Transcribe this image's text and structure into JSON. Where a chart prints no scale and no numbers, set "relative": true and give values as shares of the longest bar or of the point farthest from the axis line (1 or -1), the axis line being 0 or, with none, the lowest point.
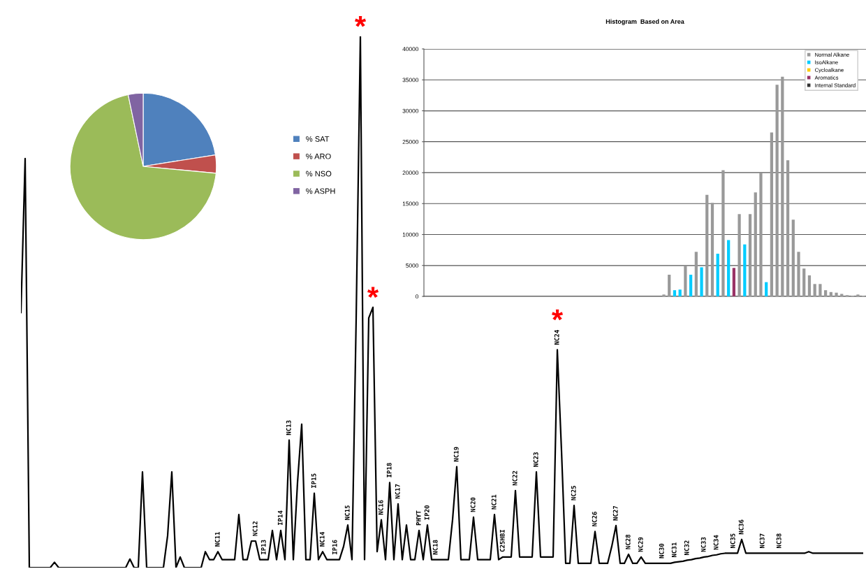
{
  "chart_data": [
    {
      "type": "pie",
      "categories": [
        "% SAT",
        "% ARO",
        "% NSO",
        "% ASPH"
      ],
      "values": [
        22.5,
        4,
        70.2,
        3.3
      ],
      "colors": [
        "#4f81bd",
        "#c0504d",
        "#9bbb59",
        "#8064a2"
      ],
      "legend": "right"
    },
    {
      "type": "bar",
      "title": "Histogram  Based on Area",
      "categories": [
        null,
        null,
        null,
        null,
        null,
        null,
        null,
        null,
        null,
        null,
        null,
        null,
        null,
        null,
        null,
        null,
        null,
        null,
        null,
        null,
        null,
        null,
        null,
        null,
        null,
        null,
        null,
        null,
        null,
        null,
        null,
        null,
        null,
        null,
        null,
        null,
        null,
        null,
        null,
        null,
        null,
        null,
        null,
        null,
        null,
        null,
        null,
        null,
        null,
        null,
        null,
        null,
        null,
        null,
        null,
        null,
        null,
        null,
        null,
        null,
        null,
        null,
        null,
        null,
        null,
        null,
        null,
        null,
        null,
        null,
        null,
        null,
        null,
        null,
        null,
        null,
        null,
        null,
        null,
        null,
        null,
        null
      ],
      "series": [
        {
          "name": "Normal Alkane",
          "color": "#999999",
          "values": [
            0,
            0,
            0,
            0,
            0,
            0,
            0,
            0,
            0,
            0,
            0,
            0,
            0,
            0,
            0,
            0,
            0,
            0,
            0,
            0,
            0,
            0,
            0,
            0,
            0,
            0,
            0,
            0,
            0,
            0,
            0,
            0,
            0,
            0,
            0,
            0,
            0,
            0,
            0,
            0,
            0,
            0,
            0,
            0,
            300,
            3500,
            null,
            null,
            5000,
            null,
            7200,
            null,
            16400,
            15100,
            null,
            20400,
            null,
            null,
            13300,
            null,
            13300,
            16800,
            20000,
            null,
            26500,
            34200,
            35500,
            22000,
            12400,
            7200,
            4500,
            3400,
            2000,
            2000,
            1000,
            700,
            600,
            400,
            200,
            100,
            300,
            100
          ]
        },
        {
          "name": "IsoAlkane",
          "color": "#00ccff",
          "values": [
            null,
            null,
            null,
            null,
            null,
            null,
            null,
            null,
            null,
            null,
            null,
            null,
            null,
            null,
            null,
            null,
            null,
            null,
            null,
            null,
            null,
            null,
            null,
            null,
            null,
            null,
            null,
            null,
            null,
            null,
            null,
            null,
            null,
            null,
            null,
            null,
            null,
            null,
            null,
            null,
            null,
            null,
            null,
            null,
            null,
            null,
            1000,
            1100,
            null,
            3500,
            null,
            4700,
            null,
            null,
            6900,
            null,
            9100,
            null,
            null,
            8400,
            null,
            null,
            null,
            2300,
            null,
            null,
            null,
            null,
            null,
            null,
            null,
            null,
            null,
            null,
            null,
            null,
            null,
            null,
            null,
            null,
            null,
            null
          ]
        },
        {
          "name": "Cycloalkane",
          "color": "#ffcc00",
          "values": [
            null,
            null,
            null,
            null,
            null,
            null,
            null,
            null,
            null,
            null,
            null,
            null,
            null,
            null,
            null,
            null,
            null,
            null,
            null,
            null,
            null,
            null,
            null,
            null,
            null,
            null,
            null,
            null,
            null,
            null,
            null,
            null,
            null,
            null,
            null,
            null,
            null,
            null,
            null,
            null,
            null,
            null,
            null,
            null,
            null,
            null,
            null,
            null,
            null,
            null,
            null,
            null,
            null,
            null,
            null,
            null,
            null,
            null,
            null,
            null,
            null,
            null,
            null,
            null,
            null,
            null,
            null,
            null,
            null,
            null,
            null,
            null,
            null,
            null,
            null,
            null,
            null,
            null,
            null,
            null,
            null,
            null
          ]
        },
        {
          "name": "Aromatics",
          "color": "#993366",
          "values": [
            null,
            null,
            null,
            null,
            null,
            null,
            null,
            null,
            null,
            null,
            null,
            null,
            null,
            null,
            null,
            null,
            null,
            null,
            null,
            null,
            null,
            null,
            null,
            null,
            null,
            null,
            null,
            null,
            null,
            null,
            null,
            null,
            null,
            null,
            null,
            null,
            null,
            null,
            null,
            null,
            null,
            null,
            null,
            null,
            null,
            null,
            null,
            null,
            null,
            null,
            null,
            null,
            null,
            null,
            null,
            null,
            null,
            4600,
            null,
            null,
            null,
            null,
            null,
            null,
            null,
            null,
            null,
            null,
            null,
            null,
            null,
            null,
            null,
            null,
            null,
            null,
            null,
            null,
            null,
            null,
            null,
            null
          ]
        },
        {
          "name": "Internal Standard",
          "color": "#333333",
          "values": [
            null,
            null,
            null,
            null,
            null,
            null,
            null,
            null,
            null,
            null,
            null,
            null,
            null,
            null,
            null,
            null,
            null,
            null,
            null,
            null,
            null,
            null,
            null,
            null,
            null,
            null,
            null,
            null,
            null,
            null,
            null,
            null,
            null,
            null,
            null,
            null,
            null,
            null,
            null,
            null,
            null,
            null,
            null,
            null,
            null,
            null,
            null,
            null,
            null,
            null,
            null,
            null,
            null,
            null,
            null,
            null,
            null,
            null,
            null,
            null,
            null,
            null,
            null,
            null,
            null,
            null,
            null,
            null,
            null,
            null,
            null,
            null,
            null,
            null,
            null,
            null,
            null,
            null,
            null,
            null,
            null,
            null
          ]
        }
      ],
      "ylim": [
        0,
        40000
      ],
      "yticks": [
        0,
        5000,
        10000,
        15000,
        20000,
        25000,
        30000,
        35000,
        40000
      ],
      "grid": "y",
      "legend": "top right"
    },
    {
      "type": "line",
      "relative": true,
      "categories": [
        null,
        null,
        null,
        null,
        null,
        null,
        null,
        null,
        null,
        null,
        null,
        null,
        null,
        null,
        null,
        null,
        null,
        null,
        null,
        null,
        null,
        null,
        null,
        null,
        null,
        null,
        null,
        null,
        null,
        null,
        null,
        null,
        null,
        null,
        null,
        null,
        null,
        null,
        null,
        null,
        null,
        null,
        null,
        null,
        null,
        null,
        null,
        "NC11",
        null,
        null,
        null,
        null,
        null,
        null,
        null,
        null,
        "NC12",
        null,
        "IP13",
        null,
        null,
        null,
        "IP14",
        null,
        "NC13",
        null,
        null,
        null,
        null,
        null,
        "IP15",
        null,
        "NC14",
        null,
        null,
        "IP16",
        null,
        null,
        "NC15",
        null,
        null,
        null,
        null,
        null,
        null,
        null,
        "NC16",
        null,
        "IP18",
        null,
        "NC17",
        null,
        null,
        null,
        null,
        "PHYT",
        null,
        "IP20",
        null,
        "NC18",
        null,
        null,
        null,
        null,
        "NC19",
        null,
        null,
        null,
        "NC20",
        null,
        null,
        null,
        null,
        "NC21",
        null,
        "C25HBI",
        null,
        null,
        "NC22",
        null,
        null,
        null,
        null,
        "NC23",
        null,
        null,
        null,
        null,
        "NC24",
        null,
        null,
        null,
        "NC25",
        null,
        null,
        null,
        null,
        "NC26",
        null,
        null,
        null,
        null,
        "NC27",
        null,
        null,
        "NC28",
        null,
        null,
        "NC29",
        null,
        null,
        null,
        null,
        "NC30",
        null,
        null,
        "NC31",
        null,
        null,
        "NC32",
        null,
        null,
        null,
        "NC33",
        null,
        null,
        "NC34",
        null,
        null,
        null,
        "NC35",
        null,
        "NC36",
        null,
        null,
        null,
        null,
        "NC37",
        null,
        null,
        null,
        "NC38",
        null,
        null,
        null,
        null,
        null,
        null,
        null,
        null,
        null,
        null,
        null,
        null,
        null,
        null,
        null,
        null,
        null,
        null,
        null,
        null
      ],
      "series": [
        {
          "color": "#000000",
          "values": [
            0.48,
            0.77,
            0,
            0,
            0,
            0,
            0,
            0,
            0.01,
            0,
            0,
            0,
            0,
            0,
            0,
            0,
            0,
            0,
            0,
            0,
            0,
            0,
            0,
            0,
            0,
            0,
            0.016,
            0,
            0,
            0.18,
            0,
            0,
            0,
            0,
            0,
            0.06,
            0.18,
            0,
            0.02,
            0,
            0,
            0,
            0,
            0,
            0.03,
            0.015,
            0.015,
            0.03,
            0.015,
            0.015,
            0.015,
            0.015,
            0.1,
            0.015,
            0.015,
            0.05,
            0.05,
            0.015,
            0.015,
            0.015,
            0.07,
            0.015,
            0.07,
            0.015,
            0.24,
            0.015,
            0.16,
            0.27,
            0.015,
            0.015,
            0.14,
            0.015,
            0.03,
            0.015,
            0.015,
            0.015,
            0.015,
            0.04,
            0.08,
            0.015,
            0.47,
            1.0,
            0.015,
            0.47,
            0.49,
            0.03,
            0.09,
            0.015,
            0.16,
            0.015,
            0.12,
            0.015,
            0.08,
            0.015,
            0.015,
            0.07,
            0.015,
            0.08,
            0.015,
            0.015,
            0.015,
            0.015,
            0.015,
            0.09,
            0.19,
            0.015,
            0.015,
            0.015,
            0.095,
            0.015,
            0.015,
            0.015,
            0.015,
            0.1,
            0.015,
            0.02,
            0.02,
            0.02,
            0.145,
            0.02,
            0.02,
            0.02,
            0.02,
            0.18,
            0.02,
            0.02,
            0.02,
            0.02,
            0.41,
            0.22,
            0.008,
            0.008,
            0.117,
            0.008,
            0.008,
            0.008,
            0.008,
            0.068,
            0.008,
            0.008,
            0.008,
            0.04,
            0.079,
            0.008,
            0.008,
            0.025,
            0.008,
            0.008,
            0.02,
            0.008,
            0.008,
            0.008,
            0.008,
            0.008,
            0.008,
            0.008,
            0.01,
            0.011,
            0.012,
            0.014,
            0.015,
            0.017,
            0.018,
            0.02,
            0.021,
            0.023,
            0.024,
            0.026,
            0.027,
            0.027,
            0.027,
            0.027,
            0.053,
            0.027,
            0.027,
            0.027,
            0.027,
            0.027,
            0.027,
            0.027,
            0.027,
            0.027,
            0.027,
            0.027,
            0.027,
            0.027,
            0.027,
            0.027,
            0.03,
            0.027,
            0.027,
            0.027,
            0.027,
            0.027,
            0.027,
            0.027,
            0.027,
            0.027,
            0.027,
            0.027,
            0.027,
            0.027
          ]
        }
      ],
      "annotations": [
        {
          "text": "*",
          "y": 1.0
        },
        {
          "text": "*",
          "y": 0.49
        },
        {
          "text": "*",
          "y": 0.41
        }
      ]
    }
  ]
}
